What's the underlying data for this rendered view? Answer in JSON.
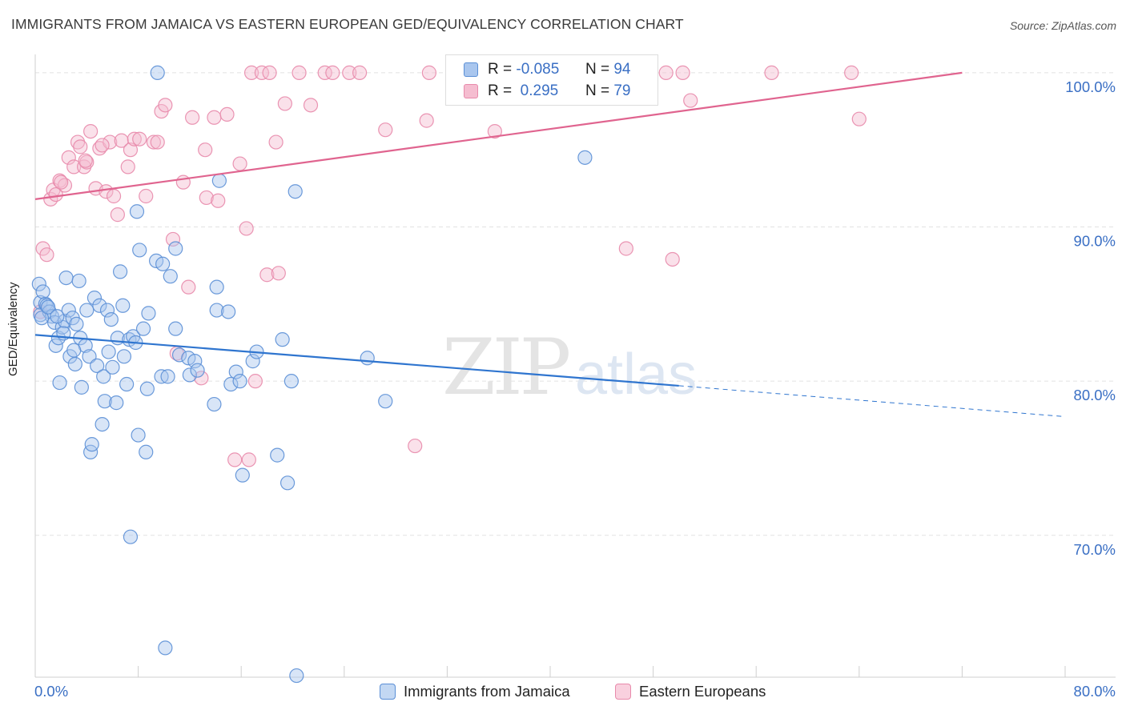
{
  "title": "IMMIGRANTS FROM JAMAICA VS EASTERN EUROPEAN GED/EQUIVALENCY CORRELATION CHART",
  "source": "Source: ZipAtlas.com",
  "watermark": {
    "zip": "ZIP",
    "atlas": "atlas"
  },
  "colors": {
    "blue_fill": "#a9c6ee",
    "blue_stroke": "#5b8fd6",
    "blue_line": "#2f75cf",
    "pink_fill": "#f5bdd0",
    "pink_stroke": "#e88aab",
    "pink_line": "#e0648f",
    "axis_text": "#3a6fc4"
  },
  "legend": {
    "row1": {
      "r_label": "R =",
      "r_value": "-0.085",
      "n_label": "N =",
      "n_value": "94"
    },
    "row2": {
      "r_label": "R =",
      "r_value": " 0.295",
      "n_label": "N =",
      "n_value": "79"
    }
  },
  "chart_data": {
    "type": "scatter",
    "title": "IMMIGRANTS FROM JAMAICA VS EASTERN EUROPEAN GED/EQUIVALENCY CORRELATION CHART",
    "xlabel": "",
    "ylabel": "GED/Equivalency",
    "xlim": [
      0,
      80
    ],
    "ylim": [
      60.8,
      101.5
    ],
    "x_tick_labels": [
      "0.0%",
      "80.0%"
    ],
    "y_ticks": [
      70,
      80,
      90,
      100
    ],
    "y_tick_labels": [
      "70.0%",
      "80.0%",
      "90.0%",
      "100.0%"
    ],
    "grid": true,
    "legend_position": "bottom",
    "series": [
      {
        "name": "Immigrants from Jamaica",
        "color": "#a9c6ee",
        "trend": {
          "x": [
            0,
            50
          ],
          "y": [
            83.0,
            79.7
          ],
          "dashed_to": [
            80,
            77.7
          ]
        },
        "points": [
          [
            0.3,
            86.3
          ],
          [
            0.4,
            85.1
          ],
          [
            0.4,
            84.3
          ],
          [
            0.6,
            85.8
          ],
          [
            0.8,
            85.0
          ],
          [
            0.9,
            84.9
          ],
          [
            1.1,
            84.5
          ],
          [
            1.3,
            84.2
          ],
          [
            1.5,
            83.8
          ],
          [
            1.6,
            82.3
          ],
          [
            1.8,
            82.8
          ],
          [
            1.9,
            79.9
          ],
          [
            2.1,
            83.5
          ],
          [
            2.3,
            83.9
          ],
          [
            2.4,
            86.7
          ],
          [
            2.6,
            84.6
          ],
          [
            2.7,
            81.6
          ],
          [
            2.9,
            84.1
          ],
          [
            3.1,
            81.1
          ],
          [
            3.2,
            83.7
          ],
          [
            3.4,
            86.5
          ],
          [
            3.5,
            82.8
          ],
          [
            3.6,
            79.6
          ],
          [
            3.9,
            82.3
          ],
          [
            4.0,
            84.6
          ],
          [
            4.2,
            81.6
          ],
          [
            4.3,
            75.4
          ],
          [
            4.4,
            75.9
          ],
          [
            4.6,
            85.4
          ],
          [
            4.8,
            81.0
          ],
          [
            5.0,
            84.9
          ],
          [
            5.2,
            77.2
          ],
          [
            5.3,
            80.3
          ],
          [
            5.4,
            78.7
          ],
          [
            5.6,
            84.6
          ],
          [
            5.7,
            81.9
          ],
          [
            5.9,
            84.0
          ],
          [
            6.0,
            80.9
          ],
          [
            6.3,
            78.6
          ],
          [
            6.4,
            82.8
          ],
          [
            6.6,
            87.1
          ],
          [
            6.8,
            84.9
          ],
          [
            6.9,
            81.6
          ],
          [
            7.1,
            79.8
          ],
          [
            7.3,
            82.7
          ],
          [
            7.4,
            69.9
          ],
          [
            7.6,
            82.9
          ],
          [
            7.8,
            82.5
          ],
          [
            7.9,
            91.0
          ],
          [
            8.0,
            76.5
          ],
          [
            8.1,
            88.5
          ],
          [
            8.4,
            83.4
          ],
          [
            8.6,
            75.4
          ],
          [
            8.7,
            79.5
          ],
          [
            8.8,
            84.4
          ],
          [
            9.4,
            87.8
          ],
          [
            9.5,
            100.0
          ],
          [
            9.8,
            80.3
          ],
          [
            9.9,
            87.6
          ],
          [
            10.1,
            62.7
          ],
          [
            10.3,
            80.3
          ],
          [
            10.5,
            86.8
          ],
          [
            10.9,
            88.6
          ],
          [
            10.9,
            83.4
          ],
          [
            11.2,
            81.7
          ],
          [
            11.9,
            81.5
          ],
          [
            12.0,
            80.4
          ],
          [
            12.4,
            81.3
          ],
          [
            12.6,
            80.7
          ],
          [
            13.9,
            78.5
          ],
          [
            14.1,
            86.1
          ],
          [
            14.1,
            84.6
          ],
          [
            14.3,
            93.0
          ],
          [
            15.0,
            84.5
          ],
          [
            15.2,
            79.8
          ],
          [
            15.6,
            80.6
          ],
          [
            15.9,
            80.0
          ],
          [
            16.1,
            73.9
          ],
          [
            16.9,
            81.3
          ],
          [
            17.2,
            81.9
          ],
          [
            18.8,
            75.2
          ],
          [
            19.2,
            82.7
          ],
          [
            19.6,
            73.4
          ],
          [
            19.9,
            80.0
          ],
          [
            20.2,
            92.3
          ],
          [
            20.3,
            60.9
          ],
          [
            25.8,
            81.5
          ],
          [
            27.2,
            78.7
          ],
          [
            42.7,
            94.5
          ],
          [
            0.5,
            84.1
          ],
          [
            1.0,
            84.8
          ],
          [
            1.7,
            84.2
          ],
          [
            2.2,
            83.1
          ],
          [
            3.0,
            82.0
          ]
        ]
      },
      {
        "name": "Eastern Europeans",
        "color": "#f5bdd0",
        "trend": {
          "x": [
            0,
            72
          ],
          "y": [
            91.8,
            100.0
          ]
        },
        "points": [
          [
            0.4,
            84.5
          ],
          [
            0.6,
            88.6
          ],
          [
            0.9,
            88.2
          ],
          [
            1.2,
            91.8
          ],
          [
            1.4,
            92.4
          ],
          [
            1.6,
            92.1
          ],
          [
            1.9,
            93.0
          ],
          [
            2.3,
            92.7
          ],
          [
            2.6,
            94.5
          ],
          [
            3.0,
            93.9
          ],
          [
            3.3,
            95.5
          ],
          [
            3.5,
            95.2
          ],
          [
            3.8,
            93.9
          ],
          [
            4.0,
            94.2
          ],
          [
            4.3,
            96.2
          ],
          [
            4.7,
            92.5
          ],
          [
            5.0,
            95.1
          ],
          [
            5.5,
            92.3
          ],
          [
            5.8,
            95.5
          ],
          [
            6.1,
            92.0
          ],
          [
            6.4,
            90.8
          ],
          [
            6.7,
            95.6
          ],
          [
            7.2,
            93.9
          ],
          [
            7.4,
            95.0
          ],
          [
            7.7,
            95.7
          ],
          [
            8.1,
            95.7
          ],
          [
            8.6,
            92.0
          ],
          [
            9.2,
            95.5
          ],
          [
            9.5,
            95.5
          ],
          [
            9.8,
            97.5
          ],
          [
            10.1,
            97.9
          ],
          [
            10.7,
            89.2
          ],
          [
            11.5,
            92.9
          ],
          [
            11.9,
            86.1
          ],
          [
            12.2,
            97.1
          ],
          [
            12.9,
            80.2
          ],
          [
            13.2,
            95.0
          ],
          [
            13.3,
            91.9
          ],
          [
            13.9,
            97.1
          ],
          [
            14.2,
            91.7
          ],
          [
            14.9,
            97.3
          ],
          [
            15.5,
            74.9
          ],
          [
            15.9,
            94.1
          ],
          [
            16.4,
            89.9
          ],
          [
            16.6,
            74.9
          ],
          [
            16.8,
            100.0
          ],
          [
            17.1,
            80.0
          ],
          [
            17.6,
            100.0
          ],
          [
            18.0,
            86.9
          ],
          [
            18.2,
            100.0
          ],
          [
            18.7,
            95.5
          ],
          [
            18.9,
            87.0
          ],
          [
            19.4,
            98.0
          ],
          [
            20.5,
            100.0
          ],
          [
            21.4,
            97.9
          ],
          [
            22.5,
            100.0
          ],
          [
            23.1,
            100.0
          ],
          [
            24.4,
            100.0
          ],
          [
            25.2,
            100.0
          ],
          [
            27.2,
            96.3
          ],
          [
            29.5,
            75.8
          ],
          [
            30.4,
            96.9
          ],
          [
            30.6,
            100.0
          ],
          [
            34.0,
            100.0
          ],
          [
            35.7,
            96.2
          ],
          [
            36.1,
            100.0
          ],
          [
            41.5,
            100.0
          ],
          [
            45.9,
            88.6
          ],
          [
            49.0,
            100.0
          ],
          [
            49.5,
            87.9
          ],
          [
            50.3,
            100.0
          ],
          [
            50.9,
            98.2
          ],
          [
            57.2,
            100.0
          ],
          [
            63.4,
            100.0
          ],
          [
            64.0,
            97.0
          ],
          [
            11.0,
            81.8
          ],
          [
            2.0,
            92.9
          ],
          [
            3.9,
            94.3
          ],
          [
            5.2,
            95.3
          ]
        ]
      }
    ]
  },
  "bottom_legend": {
    "item1": "Immigrants from Jamaica",
    "item2": "Eastern Europeans"
  }
}
